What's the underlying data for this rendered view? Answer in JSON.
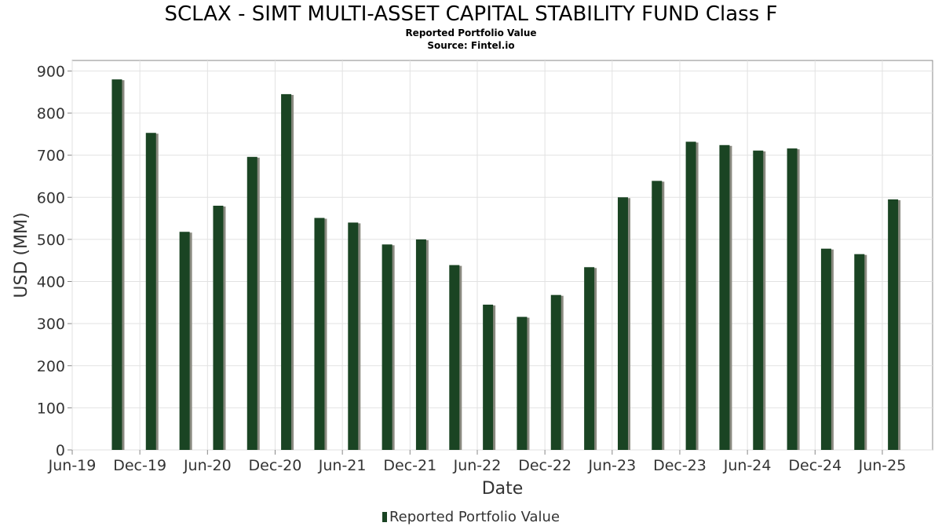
{
  "title": "SCLAX - SIMT MULTI-ASSET CAPITAL STABILITY FUND Class F",
  "subtitle": "Reported Portfolio Value",
  "source": "Source: Fintel.io",
  "colors": {
    "bar": "#1a4423",
    "bar_shadow": "#8a8a80",
    "grid": "#e2e2e2",
    "axis": "#888888"
  },
  "chart_data": {
    "type": "bar",
    "title": "SCLAX - SIMT MULTI-ASSET CAPITAL STABILITY FUND Class F",
    "subtitle": "Reported Portfolio Value",
    "xlabel": "Date",
    "ylabel": "USD (MM)",
    "ylim": [
      0,
      925
    ],
    "yticks": [
      0,
      100,
      200,
      300,
      400,
      500,
      600,
      700,
      800,
      900
    ],
    "xlim": [
      "2019-06-01",
      "2025-10-15"
    ],
    "xticks": [
      "Jun-19",
      "Dec-19",
      "Jun-20",
      "Dec-20",
      "Jun-21",
      "Dec-21",
      "Jun-22",
      "Dec-22",
      "Jun-23",
      "Dec-23",
      "Jun-24",
      "Dec-24",
      "Jun-25"
    ],
    "xtick_dates": [
      "2019-06-01",
      "2019-12-01",
      "2020-06-01",
      "2020-12-01",
      "2021-06-01",
      "2021-12-01",
      "2022-06-01",
      "2022-12-01",
      "2023-06-01",
      "2023-12-01",
      "2024-06-01",
      "2024-12-01",
      "2025-06-01"
    ],
    "grid": true,
    "legend": "bottom-center",
    "series": [
      {
        "name": "Reported Portfolio Value",
        "points": [
          {
            "x": "2019-09-30",
            "y": 880
          },
          {
            "x": "2019-12-31",
            "y": 753
          },
          {
            "x": "2020-03-31",
            "y": 518
          },
          {
            "x": "2020-06-30",
            "y": 580
          },
          {
            "x": "2020-09-30",
            "y": 696
          },
          {
            "x": "2020-12-31",
            "y": 845
          },
          {
            "x": "2021-03-31",
            "y": 551
          },
          {
            "x": "2021-06-30",
            "y": 540
          },
          {
            "x": "2021-09-30",
            "y": 488
          },
          {
            "x": "2021-12-31",
            "y": 500
          },
          {
            "x": "2022-03-31",
            "y": 439
          },
          {
            "x": "2022-06-30",
            "y": 345
          },
          {
            "x": "2022-09-30",
            "y": 316
          },
          {
            "x": "2022-12-31",
            "y": 368
          },
          {
            "x": "2023-03-31",
            "y": 434
          },
          {
            "x": "2023-06-30",
            "y": 600
          },
          {
            "x": "2023-09-30",
            "y": 639
          },
          {
            "x": "2023-12-31",
            "y": 732
          },
          {
            "x": "2024-03-31",
            "y": 724
          },
          {
            "x": "2024-06-30",
            "y": 711
          },
          {
            "x": "2024-09-30",
            "y": 716
          },
          {
            "x": "2024-12-31",
            "y": 478
          },
          {
            "x": "2025-03-31",
            "y": 465
          },
          {
            "x": "2025-06-30",
            "y": 595
          }
        ]
      }
    ]
  }
}
